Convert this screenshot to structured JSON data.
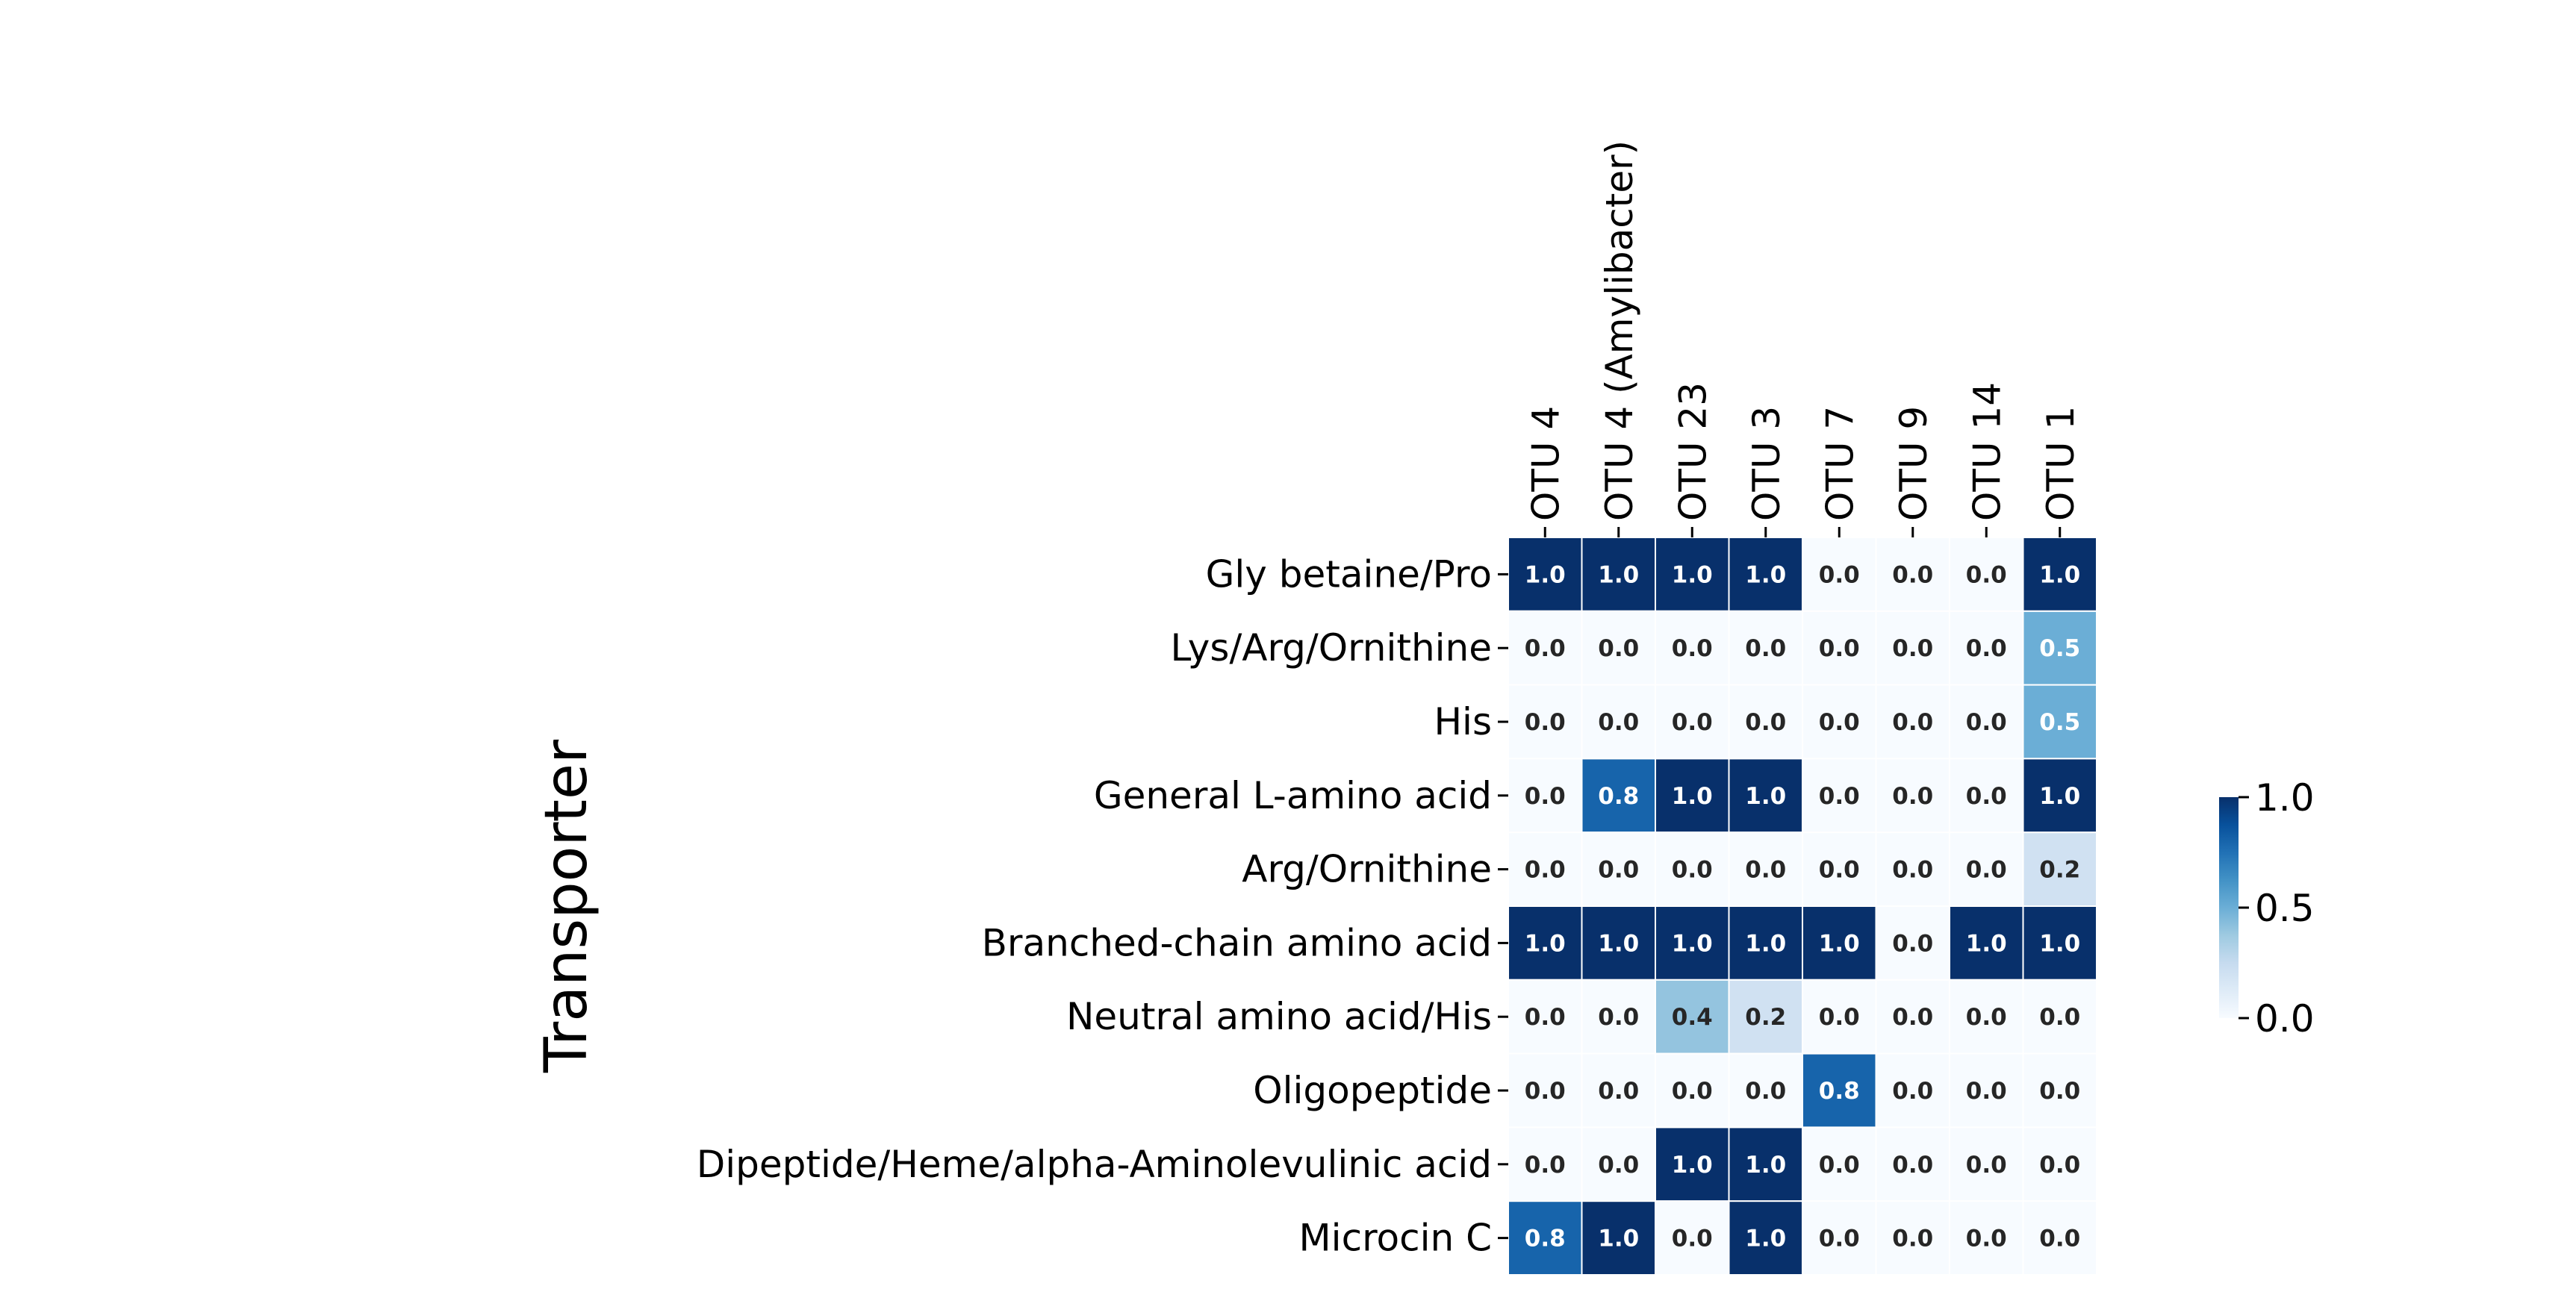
{
  "chart_data": {
    "type": "heatmap",
    "ylabel": "Transporter",
    "xlabel": "",
    "columns": [
      "OTU 4",
      "OTU 4 (Amylibacter)",
      "OTU 23",
      "OTU 3",
      "OTU 7",
      "OTU 9",
      "OTU 14",
      "OTU 1"
    ],
    "rows": [
      "Gly betaine/Pro",
      "Lys/Arg/Ornithine",
      "His",
      "General L-amino acid ",
      "Arg/Ornithine",
      "Branched-chain amino acid",
      "Neutral amino acid/His",
      "Oligopeptide",
      "Dipeptide/Heme/alpha-Aminolevulinic acid",
      "Microcin C"
    ],
    "values": [
      [
        1.0,
        1.0,
        1.0,
        1.0,
        0.0,
        0.0,
        0.0,
        1.0
      ],
      [
        0.0,
        0.0,
        0.0,
        0.0,
        0.0,
        0.0,
        0.0,
        0.5
      ],
      [
        0.0,
        0.0,
        0.0,
        0.0,
        0.0,
        0.0,
        0.0,
        0.5
      ],
      [
        0.0,
        0.8,
        1.0,
        1.0,
        0.0,
        0.0,
        0.0,
        1.0
      ],
      [
        0.0,
        0.0,
        0.0,
        0.0,
        0.0,
        0.0,
        0.0,
        0.2
      ],
      [
        1.0,
        1.0,
        1.0,
        1.0,
        1.0,
        0.0,
        1.0,
        1.0
      ],
      [
        0.0,
        0.0,
        0.4,
        0.2,
        0.0,
        0.0,
        0.0,
        0.0
      ],
      [
        0.0,
        0.0,
        0.0,
        0.0,
        0.8,
        0.0,
        0.0,
        0.0
      ],
      [
        0.0,
        0.0,
        1.0,
        1.0,
        0.0,
        0.0,
        0.0,
        0.0
      ],
      [
        0.8,
        1.0,
        0.0,
        1.0,
        0.0,
        0.0,
        0.0,
        0.0
      ]
    ],
    "value_format": "0.0",
    "colormap": "Blues",
    "vmin": 0.0,
    "vmax": 1.0,
    "colorbar": {
      "ticks": [
        0.0,
        0.5,
        1.0
      ],
      "tick_labels": [
        "0.0",
        "0.5",
        "1.0"
      ]
    },
    "colors": {
      "low": "#f7fbff",
      "high": "#08306b",
      "text_dark": "#262626",
      "text_light": "#ffffff",
      "cell_border": "#ffffff"
    },
    "grid": false,
    "legend": "none",
    "x_tick_position": "top"
  }
}
